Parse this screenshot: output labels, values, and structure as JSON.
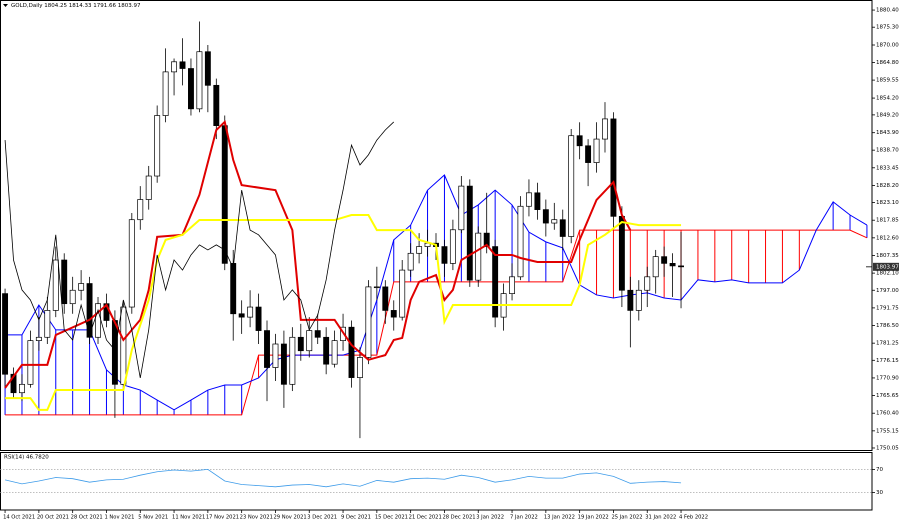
{
  "chart_data": [
    {
      "type": "candlestick",
      "title": "GOLD,Daily  1804.25 1814.33 1791.66 1803.97",
      "categories": [
        "14 Oct 2021",
        null,
        null,
        null,
        "20 Oct 2021",
        null,
        null,
        null,
        "28 Oct 2021",
        null,
        null,
        null,
        "1 Nov 2021",
        null,
        null,
        null,
        "5 Nov 2021",
        null,
        null,
        null,
        "11 Nov 2021",
        null,
        null,
        null,
        "17 Nov 2021",
        null,
        null,
        null,
        "23 Nov 2021",
        null,
        null,
        null,
        "29 Nov 2021",
        null,
        null,
        null,
        "3 Dec 2021",
        null,
        null,
        null,
        "9 Dec 2021",
        null,
        null,
        null,
        "15 Dec 2021",
        null,
        null,
        null,
        "21 Dec 2021",
        null,
        null,
        null,
        "28 Dec 2021",
        null,
        null,
        null,
        "3 Jan 2022",
        null,
        null,
        null,
        "7 Jan 2022",
        null,
        null,
        null,
        "13 Jan 2022",
        null,
        null,
        null,
        "19 Jan 2022",
        null,
        null,
        null,
        "25 Jan 2022",
        null,
        null,
        null,
        "31 Jan 2022",
        null,
        null,
        null,
        "4 Feb 2022"
      ],
      "open": [
        1796,
        1772,
        1766.5,
        1769,
        1782,
        1783,
        1791,
        1806,
        1793,
        1797,
        1799,
        1783,
        1793,
        1788,
        1769,
        1792,
        1818,
        1824,
        1831,
        1849,
        1862,
        1865,
        1863,
        1851,
        1868,
        1858,
        1846,
        1805,
        1790,
        1789,
        1792,
        1785,
        1774,
        1781,
        1769,
        1783,
        1779,
        1785,
        1783,
        1775,
        1782,
        1786,
        1771,
        1777,
        1798,
        1798,
        1791,
        1789,
        1803,
        1808,
        1810,
        1811,
        1810,
        1805,
        1815,
        1828,
        1800,
        1814,
        1810,
        1789,
        1796,
        1801,
        1822,
        1826,
        1821,
        1817,
        1818,
        1813,
        1843,
        1840,
        1835,
        1842,
        1848,
        1819,
        1797,
        1791,
        1797,
        1801,
        1807,
        1805,
        1804.25
      ],
      "high": [
        1797.5,
        1774,
        1772,
        1785,
        1789,
        1795,
        1810,
        1808,
        1801,
        1803,
        1801,
        1795,
        1796,
        1791,
        1794,
        1820,
        1828,
        1834,
        1852,
        1869,
        1866,
        1872,
        1866,
        1877,
        1870,
        1860,
        1849,
        1809,
        1794,
        1797,
        1796,
        1788,
        1784,
        1785,
        1786,
        1787,
        1789,
        1790,
        1786,
        1785,
        1790,
        1788,
        1780,
        1800,
        1804,
        1800,
        1794,
        1806,
        1811,
        1814,
        1815,
        1814,
        1812,
        1818,
        1831,
        1830,
        1816,
        1826,
        1812,
        1799,
        1805,
        1825,
        1830,
        1829,
        1824,
        1823,
        1821,
        1845,
        1847,
        1842,
        1847,
        1853,
        1850,
        1822,
        1801,
        1800,
        1804,
        1809,
        1810,
        1808,
        1814.33
      ],
      "low": [
        1768,
        1765,
        1764,
        1768,
        1779,
        1781,
        1789,
        1790,
        1790,
        1794,
        1781,
        1781,
        1786,
        1759,
        1767,
        1790,
        1815,
        1821,
        1829,
        1847,
        1855,
        1858,
        1849,
        1850,
        1850,
        1842,
        1803,
        1782,
        1784,
        1786,
        1781,
        1764,
        1770,
        1762,
        1767,
        1776,
        1777,
        1781,
        1772,
        1774,
        1779,
        1768,
        1753,
        1775,
        1794,
        1787,
        1785,
        1788,
        1801,
        1805,
        1807,
        1806,
        1801,
        1803,
        1814,
        1798,
        1798,
        1808,
        1786,
        1785,
        1794,
        1800,
        1819,
        1818,
        1813,
        1815,
        1809,
        1811,
        1836,
        1828,
        1832,
        1838,
        1815,
        1792,
        1780,
        1788,
        1792,
        1796,
        1801,
        1795,
        1791.66
      ],
      "close": [
        1772,
        1766.5,
        1769,
        1782,
        1783,
        1791,
        1806,
        1793,
        1797,
        1799,
        1783,
        1793,
        1788,
        1769,
        1792,
        1818,
        1824,
        1831,
        1849,
        1862,
        1865,
        1863,
        1851,
        1868,
        1858,
        1846,
        1805,
        1790,
        1789,
        1792,
        1785,
        1774,
        1781,
        1769,
        1783,
        1779,
        1785,
        1783,
        1775,
        1782,
        1786,
        1771,
        1777,
        1798,
        1798,
        1791,
        1789,
        1803,
        1808,
        1810,
        1811,
        1810,
        1805,
        1815,
        1828,
        1800,
        1814,
        1810,
        1789,
        1796,
        1801,
        1822,
        1826,
        1821,
        1817,
        1818,
        1813,
        1843,
        1840,
        1835,
        1842,
        1848,
        1819,
        1797,
        1791,
        1797,
        1801,
        1807,
        1805,
        1804.25,
        1803.97
      ],
      "up_color": "#ffffff",
      "down_color": "#000000",
      "cloud": {
        "x": [
          0,
          2,
          4,
          6,
          8,
          10,
          12,
          14,
          16,
          18,
          20,
          22,
          24,
          26,
          28,
          30,
          32,
          34,
          36,
          38,
          40,
          42,
          44,
          46,
          48,
          50,
          52,
          54,
          56,
          58,
          60,
          62,
          64,
          66,
          68,
          70,
          72,
          74,
          76,
          78,
          80,
          82,
          84,
          86,
          88,
          90,
          92,
          94,
          96,
          98,
          100,
          102
        ],
        "span_a": [
          1783.7,
          1783.7,
          1792.6,
          1785.2,
          1785.2,
          1785.2,
          1773.3,
          1768.8,
          1767.3,
          1764.3,
          1761.4,
          1764.3,
          1767.3,
          1768.8,
          1768.8,
          1770.9,
          1776.3,
          1777.7,
          1777.7,
          1777.7,
          1777.7,
          1779.2,
          1794.1,
          1812.0,
          1816.4,
          1826.8,
          1831.3,
          1819.4,
          1822.4,
          1826.8,
          1822.4,
          1814.3,
          1811.4,
          1809.6,
          1798.6,
          1795.6,
          1794.7,
          1795.6,
          1796.2,
          1794.7,
          1794.1,
          1800.1,
          1799.5,
          1800.1,
          1799.2,
          1799.2,
          1799.2,
          1803.0,
          1814.9,
          1823.3,
          1819.4,
          1816.4
        ],
        "span_b": [
          1759.9,
          1759.9,
          1759.9,
          1759.9,
          1759.9,
          1759.9,
          1759.9,
          1759.9,
          1759.9,
          1759.9,
          1759.9,
          1759.9,
          1759.9,
          1759.9,
          1759.9,
          1777.7,
          1777.7,
          1777.7,
          1777.7,
          1777.7,
          1777.7,
          1777.7,
          1777.7,
          1799.5,
          1799.5,
          1799.5,
          1799.5,
          1799.5,
          1799.5,
          1799.5,
          1799.5,
          1799.5,
          1799.5,
          1799.5,
          1814.9,
          1814.9,
          1814.9,
          1814.9,
          1814.9,
          1814.9,
          1814.9,
          1814.9,
          1814.9,
          1814.9,
          1814.9,
          1814.9,
          1814.9,
          1814.9,
          1814.9,
          1814.9,
          1814.9,
          1812.6
        ],
        "a_color": "#0000ff",
        "b_color": "#ff0000"
      },
      "lines": [
        {
          "color": "#e00000",
          "width": 2,
          "x": [
            0,
            2,
            5,
            6,
            10,
            12,
            14,
            16,
            17,
            18,
            21,
            23,
            25,
            26,
            27,
            28,
            32,
            34,
            35,
            39,
            41,
            43,
            45,
            46,
            47,
            48,
            49,
            51,
            52,
            53,
            54,
            56,
            57,
            58,
            60,
            61,
            63,
            67,
            68,
            70,
            72,
            73,
            74
          ],
          "values": [
            1767.9,
            1774.8,
            1774.8,
            1783.7,
            1788.2,
            1792.6,
            1782.2,
            1788.2,
            1797.1,
            1812.9,
            1813.5,
            1825.4,
            1844.7,
            1847.1,
            1835.8,
            1828.3,
            1826.8,
            1814.9,
            1788.2,
            1788.2,
            1780.7,
            1776.3,
            1777.7,
            1782.2,
            1782.8,
            1794.1,
            1799.5,
            1801.5,
            1794.1,
            1797.1,
            1806.0,
            1809.0,
            1810.5,
            1807.5,
            1807.5,
            1806.6,
            1805.4,
            1805.4,
            1812.0,
            1823.9,
            1829.2,
            1819.4,
            1814.9
          ]
        },
        {
          "color": "#ffff00",
          "width": 2,
          "x": [
            0,
            3,
            4,
            5,
            6,
            14,
            15,
            17,
            18,
            19,
            21,
            23,
            39,
            41,
            43,
            44,
            48,
            49,
            51,
            52,
            53,
            67,
            68,
            69,
            71,
            73,
            75,
            80
          ],
          "values": [
            1764.9,
            1764.9,
            1761.4,
            1761.4,
            1767.3,
            1767.3,
            1779.2,
            1794.1,
            1806.0,
            1812.0,
            1813.5,
            1817.9,
            1817.9,
            1819.4,
            1819.4,
            1814.9,
            1814.9,
            1812.0,
            1810.5,
            1787.6,
            1792.6,
            1792.6,
            1798.6,
            1810.5,
            1813.5,
            1817.3,
            1816.4,
            1816.4
          ]
        },
        {
          "color": "#000000",
          "width": 0.8,
          "x": [
            0,
            1,
            2,
            3,
            4,
            5,
            6,
            7,
            8,
            9,
            10,
            11,
            12,
            13,
            14,
            15,
            16,
            17,
            18,
            19,
            20,
            21,
            22,
            23,
            24,
            25,
            26,
            27,
            28,
            29,
            30,
            31,
            32,
            33,
            34,
            35,
            36,
            37,
            38,
            39,
            40,
            41,
            42,
            43,
            44,
            45,
            46
          ],
          "values": [
            1841.7,
            1806.0,
            1797.1,
            1794.1,
            1788.2,
            1794.1,
            1813.5,
            1785.2,
            1782.2,
            1792.6,
            1783.7,
            1791.1,
            1782.2,
            1779.2,
            1794.1,
            1785.2,
            1770.9,
            1785.2,
            1807.5,
            1797.1,
            1806.0,
            1803.0,
            1807.5,
            1810.5,
            1809.0,
            1810.5,
            1809.0,
            1803.6,
            1826.8,
            1814.9,
            1813.5,
            1810.5,
            1807.5,
            1794.1,
            1797.1,
            1794.1,
            1785.2,
            1789.6,
            1800.1,
            1814.9,
            1826.8,
            1840.2,
            1834.3,
            1837.3,
            1841.7,
            1844.7,
            1847.1
          ]
        }
      ],
      "last_price": 1803.97,
      "xlim": [
        -0.6,
        102.6
      ],
      "ylim": [
        1749.45,
        1882.8
      ],
      "yticks": [
        {
          "value": 1880.4,
          "label": "1880.40"
        },
        {
          "value": 1875.3,
          "label": "1875.30"
        },
        {
          "value": 1870,
          "label": "1870.00"
        },
        {
          "value": 1864.8,
          "label": "1864.80"
        },
        1859.55,
        {
          "value": 1854.2,
          "label": "1854.20"
        },
        {
          "value": 1849.2,
          "label": "1849.20"
        },
        {
          "value": 1843.9,
          "label": "1843.90"
        },
        {
          "value": 1838.7,
          "label": "1838.70"
        },
        1833.45,
        {
          "value": 1828.2,
          "label": "1828.20"
        },
        {
          "value": 1823.1,
          "label": "1823.10"
        },
        1817.85,
        {
          "value": 1812.6,
          "label": "1812.60"
        },
        1807.35,
        {
          "value": 1802.1,
          "label": "1802.10"
        },
        {
          "value": 1797,
          "label": "1797.00"
        },
        1791.75,
        {
          "value": 1786.5,
          "label": "1786.50"
        },
        1781.25,
        1776.15,
        {
          "value": 1770.9,
          "label": "1770.90"
        },
        1765.65,
        {
          "value": 1760.4,
          "label": "1760.40"
        },
        1755.15,
        1750.05
      ]
    },
    {
      "type": "line",
      "title": "RSI(14) 46.7820",
      "color": "#3d9be9",
      "x": [
        0,
        2,
        4,
        6,
        8,
        10,
        12,
        14,
        16,
        18,
        20,
        22,
        24,
        26,
        28,
        30,
        32,
        34,
        36,
        38,
        40,
        42,
        44,
        46,
        48,
        50,
        52,
        54,
        56,
        58,
        60,
        62,
        64,
        66,
        68,
        70,
        72,
        74,
        76,
        78,
        80
      ],
      "values": [
        52,
        45,
        50,
        56,
        54,
        48,
        52,
        53,
        60,
        66,
        69,
        67,
        70,
        50,
        44,
        42,
        40,
        43,
        44,
        40,
        45,
        41,
        51,
        48,
        54,
        55,
        53,
        60,
        56,
        48,
        52,
        58,
        55,
        55,
        62,
        64,
        58,
        46,
        48,
        49,
        46.782
      ],
      "xlim": [
        -0.6,
        102.6
      ],
      "ylim": [
        0,
        100
      ],
      "yticks": [
        70,
        30
      ],
      "level_color": "#999999"
    }
  ]
}
